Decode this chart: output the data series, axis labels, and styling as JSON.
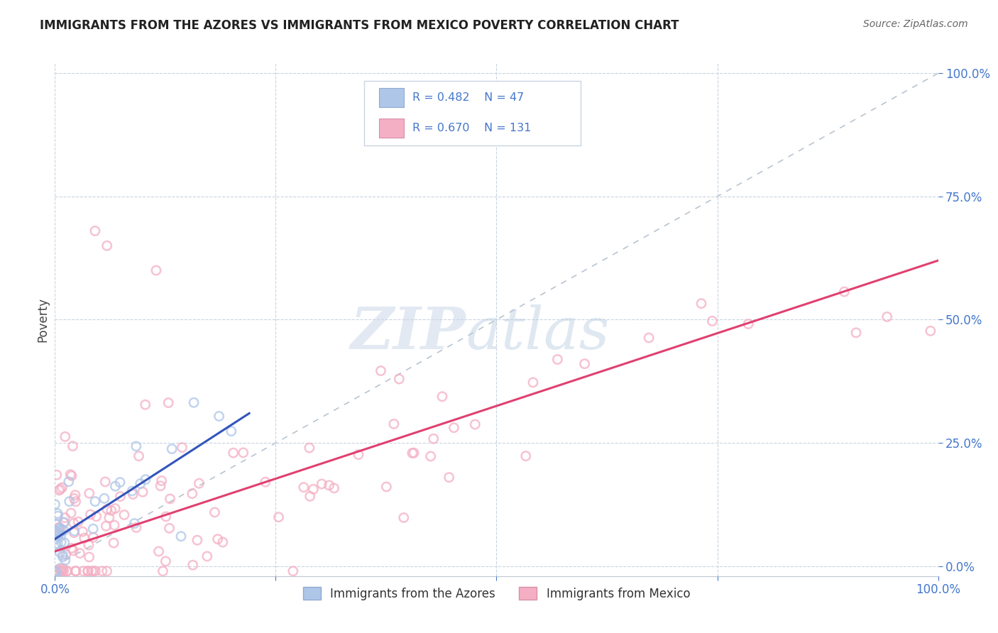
{
  "title": "IMMIGRANTS FROM THE AZORES VS IMMIGRANTS FROM MEXICO POVERTY CORRELATION CHART",
  "source": "Source: ZipAtlas.com",
  "ylabel": "Poverty",
  "legend_label_azores": "Immigrants from the Azores",
  "legend_label_mexico": "Immigrants from Mexico",
  "legend_r_azores": "R = 0.482",
  "legend_n_azores": "N = 47",
  "legend_r_mexico": "R = 0.670",
  "legend_n_mexico": "N = 131",
  "color_azores_fill": "#aec6e8",
  "color_azores_edge": "#aec6e8",
  "color_mexico_fill": "#f4afc4",
  "color_mexico_edge": "#f4afc4",
  "color_azores_line": "#3355bb",
  "color_mexico_line": "#e04070",
  "color_diagonal": "#b8c4d0",
  "color_tick_label": "#4477cc",
  "color_grid": "#c8d4e0",
  "color_title": "#222222",
  "color_source": "#666666",
  "color_ylabel": "#444444",
  "watermark_zip_color": "#ccd8e8",
  "watermark_atlas_color": "#b8cce0",
  "background_color": "#ffffff",
  "marker_size": 80,
  "marker_alpha": 0.75,
  "xlim": [
    0.0,
    1.0
  ],
  "ylim": [
    0.0,
    1.0
  ],
  "xticks": [
    0.0,
    0.25,
    0.5,
    0.75,
    1.0
  ],
  "yticks": [
    0.0,
    0.25,
    0.5,
    0.75,
    1.0
  ],
  "x_ticklabels_show": [
    "0.0%",
    "",
    "",
    "",
    "100.0%"
  ],
  "y_ticklabels_show": [
    "0.0%",
    "25.0%",
    "50.0%",
    "75.0%",
    "100.0%"
  ],
  "mexico_line_x0": 0.0,
  "mexico_line_x1": 1.0,
  "mexico_line_y0": 0.03,
  "mexico_line_y1": 0.62,
  "azores_line_x0": 0.0,
  "azores_line_x1": 0.22,
  "azores_line_y0": 0.055,
  "azores_line_y1": 0.31
}
